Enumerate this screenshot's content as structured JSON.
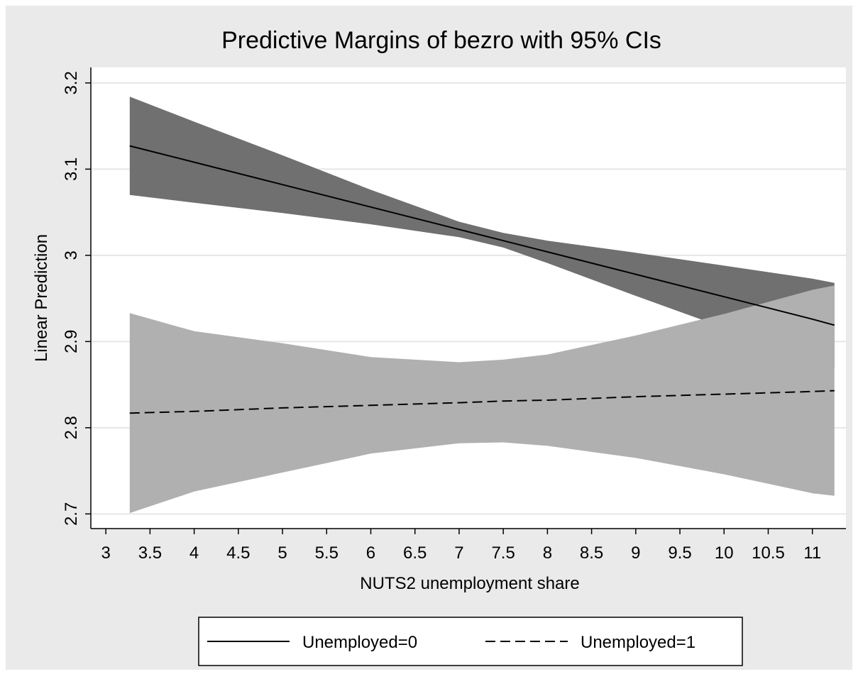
{
  "chart_data": {
    "type": "line-ci",
    "title": "Predictive Margins of bezro with 95% CIs",
    "x_label": "NUTS2 unemployment share",
    "y_label": "Linear Prediction",
    "x": [
      3.27,
      4,
      5,
      6,
      7,
      7.5,
      8,
      9,
      10,
      11,
      11.25
    ],
    "series": [
      {
        "name": "Unemployed=0",
        "color": "#000000",
        "band_color": "#707070",
        "dash": false,
        "values": [
          3.127,
          3.108,
          3.082,
          3.056,
          3.03,
          3.017,
          3.004,
          2.978,
          2.952,
          2.926,
          2.919
        ],
        "upper": [
          3.184,
          3.155,
          3.116,
          3.076,
          3.039,
          3.026,
          3.017,
          3.003,
          2.988,
          2.973,
          2.968
        ],
        "lower": [
          3.07,
          3.061,
          3.049,
          3.036,
          3.021,
          3.009,
          2.991,
          2.953,
          2.916,
          2.879,
          2.87
        ]
      },
      {
        "name": "Unemployed=1",
        "color": "#000000",
        "band_color": "#b0b0b0",
        "dash": true,
        "values": [
          2.817,
          2.819,
          2.823,
          2.826,
          2.829,
          2.831,
          2.832,
          2.836,
          2.839,
          2.842,
          2.843
        ],
        "upper": [
          2.933,
          2.912,
          2.898,
          2.882,
          2.876,
          2.879,
          2.885,
          2.907,
          2.932,
          2.96,
          2.965
        ],
        "lower": [
          2.701,
          2.726,
          2.748,
          2.77,
          2.782,
          2.783,
          2.779,
          2.765,
          2.746,
          2.724,
          2.721
        ]
      }
    ],
    "xlim": [
      2.83,
      11.38
    ],
    "ylim": [
      2.683,
      3.218
    ],
    "xticks": [
      3,
      3.5,
      4,
      4.5,
      5,
      5.5,
      6,
      6.5,
      7,
      7.5,
      8,
      8.5,
      9,
      9.5,
      10,
      10.5,
      11
    ],
    "yticks": [
      2.7,
      2.8,
      2.9,
      3,
      3.1,
      3.2
    ],
    "grid": true,
    "legend": "bottom"
  }
}
